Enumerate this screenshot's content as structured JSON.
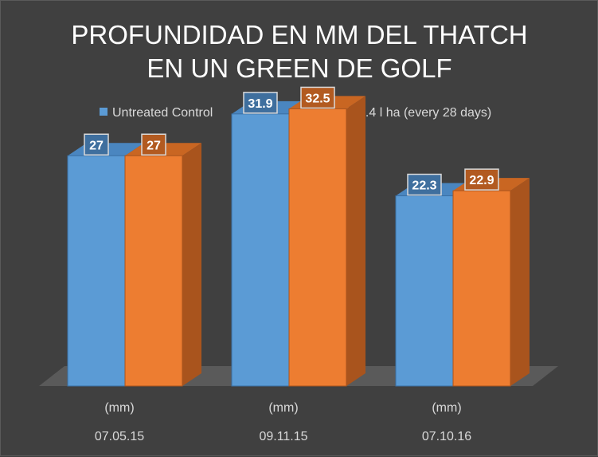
{
  "chart_data": {
    "type": "bar",
    "title_lines": [
      "PROFUNDIDAD EN MM DEL THATCH",
      "EN UN GREEN DE GOLF"
    ],
    "categories": [
      {
        "unit": "(mm)",
        "date": "07.05.15"
      },
      {
        "unit": "(mm)",
        "date": "09.11.15"
      },
      {
        "unit": "(mm)",
        "date": "07.10.16"
      }
    ],
    "series": [
      {
        "name": "Untreated Control",
        "values": [
          27,
          31.9,
          22.3
        ],
        "color": "#5b9bd5",
        "side_color": "#3a6fa3",
        "top_color": "#4a86c0"
      },
      {
        "name": "Primo Maxx  @ 0.4 l ha (every 28 days)",
        "values": [
          27,
          32.5,
          22.9
        ],
        "color": "#ed7d31",
        "side_color": "#a9541d",
        "top_color": "#c96622"
      }
    ],
    "ylim": [
      0,
      36
    ],
    "legend_position": "top",
    "grid": false,
    "data_labels": true,
    "three_d": true
  }
}
